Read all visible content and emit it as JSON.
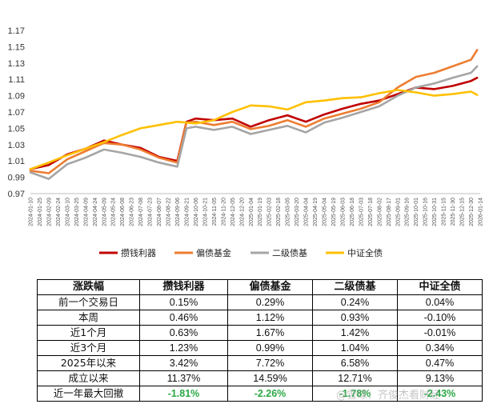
{
  "chart_data": {
    "type": "line",
    "y_ticks": [
      "0.97",
      "0.99",
      "1.01",
      "1.03",
      "1.05",
      "1.07",
      "1.09",
      "1.11",
      "1.13",
      "1.15",
      "1.17"
    ],
    "ylim": [
      0.97,
      1.17
    ],
    "x_ticks": [
      "2024-01-10",
      "2024-01-25",
      "2024-02-09",
      "2024-02-24",
      "2024-03-10",
      "2024-03-25",
      "2024-04-09",
      "2024-04-24",
      "2024-05-09",
      "2024-05-24",
      "2024-06-08",
      "2024-06-23",
      "2024-07-08",
      "2024-07-23",
      "2024-08-07",
      "2024-08-22",
      "2024-09-06",
      "2024-09-21",
      "2024-10-06",
      "2024-10-21",
      "2024-11-05",
      "2024-11-20",
      "2024-12-05",
      "2024-12-20",
      "2025-01-04",
      "2025-01-19",
      "2025-02-03",
      "2025-02-18",
      "2025-03-05",
      "2025-03-20",
      "2025-04-04",
      "2025-04-19",
      "2025-05-04",
      "2025-05-19",
      "2025-06-03",
      "2025-06-18",
      "2025-07-03",
      "2025-07-18",
      "2025-08-02",
      "2025-08-17",
      "2025-09-01",
      "2025-09-16",
      "2025-10-01",
      "2025-10-16",
      "2025-10-31",
      "2025-11-15",
      "2025-11-30",
      "2025-12-15",
      "2025-12-30",
      "2026-01-14"
    ],
    "series": [
      {
        "name": "攒钱利器",
        "color": "#c00000",
        "x": [
          "2024-01-10",
          "2024-02-09",
          "2024-03-10",
          "2024-04-09",
          "2024-05-09",
          "2024-06-08",
          "2024-07-08",
          "2024-08-07",
          "2024-09-06",
          "2024-09-21",
          "2024-10-06",
          "2024-11-05",
          "2024-12-05",
          "2025-01-04",
          "2025-02-03",
          "2025-03-05",
          "2025-04-04",
          "2025-05-04",
          "2025-06-03",
          "2025-07-03",
          "2025-08-02",
          "2025-09-01",
          "2025-10-01",
          "2025-10-31",
          "2025-11-30",
          "2025-12-30",
          "2026-01-09"
        ],
        "values": [
          1.0,
          1.005,
          1.018,
          1.025,
          1.035,
          1.03,
          1.026,
          1.015,
          1.01,
          1.058,
          1.062,
          1.06,
          1.062,
          1.052,
          1.06,
          1.066,
          1.058,
          1.067,
          1.074,
          1.08,
          1.084,
          1.092,
          1.1,
          1.098,
          1.102,
          1.108,
          1.112
        ]
      },
      {
        "name": "偏债基金",
        "color": "#ed7d31",
        "x": [
          "2024-01-10",
          "2024-02-09",
          "2024-03-10",
          "2024-04-09",
          "2024-05-09",
          "2024-06-08",
          "2024-07-08",
          "2024-08-07",
          "2024-09-06",
          "2024-09-21",
          "2024-10-06",
          "2024-11-05",
          "2024-12-05",
          "2025-01-04",
          "2025-02-03",
          "2025-03-05",
          "2025-04-04",
          "2025-05-04",
          "2025-06-03",
          "2025-07-03",
          "2025-08-02",
          "2025-09-01",
          "2025-10-01",
          "2025-10-31",
          "2025-11-30",
          "2025-12-30",
          "2026-01-09"
        ],
        "values": [
          0.998,
          0.995,
          1.012,
          1.022,
          1.032,
          1.03,
          1.024,
          1.014,
          1.008,
          1.057,
          1.058,
          1.054,
          1.058,
          1.049,
          1.053,
          1.06,
          1.052,
          1.062,
          1.068,
          1.074,
          1.082,
          1.1,
          1.113,
          1.118,
          1.126,
          1.134,
          1.146
        ]
      },
      {
        "name": "二级债基",
        "color": "#a5a5a5",
        "x": [
          "2024-01-10",
          "2024-02-09",
          "2024-03-10",
          "2024-04-09",
          "2024-05-09",
          "2024-06-08",
          "2024-07-08",
          "2024-08-07",
          "2024-09-06",
          "2024-09-21",
          "2024-10-06",
          "2024-11-05",
          "2024-12-05",
          "2025-01-04",
          "2025-02-03",
          "2025-03-05",
          "2025-04-04",
          "2025-05-04",
          "2025-06-03",
          "2025-07-03",
          "2025-08-02",
          "2025-09-01",
          "2025-10-01",
          "2025-10-31",
          "2025-11-30",
          "2025-12-30",
          "2026-01-09"
        ],
        "values": [
          0.996,
          0.988,
          1.006,
          1.014,
          1.024,
          1.02,
          1.015,
          1.008,
          1.003,
          1.05,
          1.052,
          1.048,
          1.052,
          1.043,
          1.048,
          1.053,
          1.045,
          1.057,
          1.063,
          1.07,
          1.077,
          1.09,
          1.1,
          1.105,
          1.112,
          1.118,
          1.126
        ]
      },
      {
        "name": "中证全债",
        "color": "#ffc000",
        "x": [
          "2024-01-10",
          "2024-02-09",
          "2024-03-10",
          "2024-04-09",
          "2024-05-09",
          "2024-06-08",
          "2024-07-08",
          "2024-08-07",
          "2024-09-06",
          "2024-10-06",
          "2024-11-05",
          "2024-12-05",
          "2025-01-04",
          "2025-02-03",
          "2025-03-05",
          "2025-04-04",
          "2025-05-04",
          "2025-06-03",
          "2025-07-03",
          "2025-08-02",
          "2025-09-01",
          "2025-10-01",
          "2025-10-31",
          "2025-11-30",
          "2025-12-30",
          "2026-01-09"
        ],
        "values": [
          1.0,
          1.008,
          1.017,
          1.025,
          1.033,
          1.042,
          1.05,
          1.054,
          1.058,
          1.056,
          1.06,
          1.07,
          1.078,
          1.077,
          1.073,
          1.082,
          1.084,
          1.087,
          1.088,
          1.093,
          1.097,
          1.094,
          1.09,
          1.092,
          1.095,
          1.091
        ]
      }
    ],
    "legend_position": "bottom",
    "grid": false
  },
  "table": {
    "headers": [
      "涨跌幅",
      "攒钱利器",
      "偏债基金",
      "二级债基",
      "中证全债"
    ],
    "rows": [
      [
        "前一个交易日",
        "0.15%",
        "0.29%",
        "0.24%",
        "0.04%"
      ],
      [
        "本周",
        "0.46%",
        "1.12%",
        "0.93%",
        "-0.10%"
      ],
      [
        "近1个月",
        "0.63%",
        "1.67%",
        "1.42%",
        "-0.01%"
      ],
      [
        "近3个月",
        "1.23%",
        "0.99%",
        "1.04%",
        "0.34%"
      ],
      [
        "2025年以来",
        "3.42%",
        "7.72%",
        "6.58%",
        "0.47%"
      ],
      [
        "成立以来",
        "11.37%",
        "14.59%",
        "12.71%",
        "9.13%"
      ],
      [
        "近一年最大回撤",
        "-1.81%",
        "-2.26%",
        "-1.78%",
        "-2.43%"
      ]
    ]
  },
  "watermark": "@雪球：齐俊杰看财经"
}
